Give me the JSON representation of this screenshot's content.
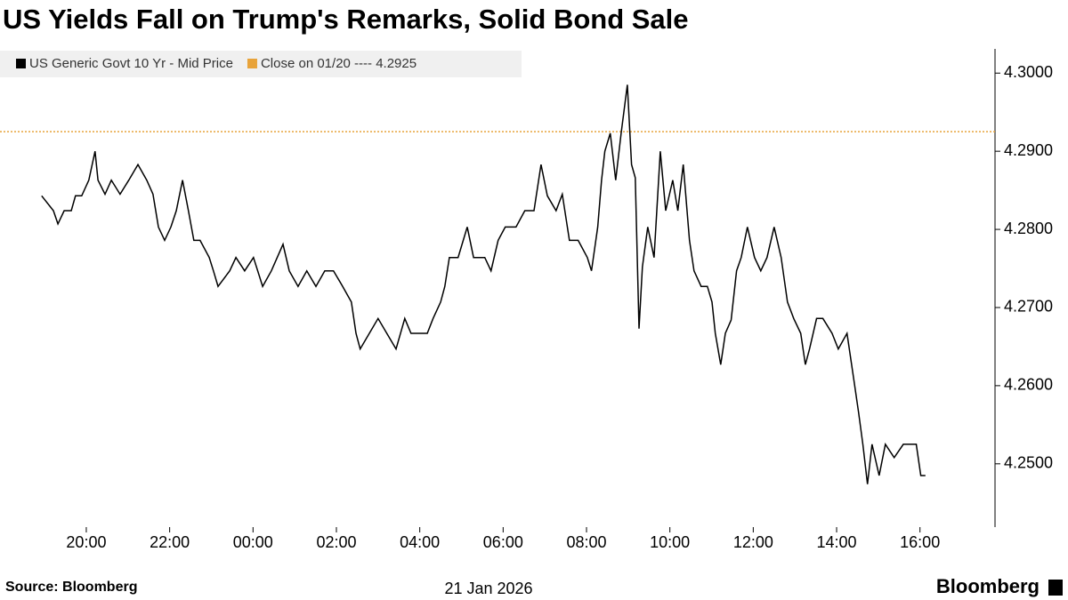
{
  "chart_data": {
    "type": "line",
    "title": "US Yields Fall on Trump's Remarks, Solid Bond Sale",
    "x_label": "21 Jan 2026",
    "source": "Source: Bloomberg",
    "brand": "Bloomberg",
    "x": [
      -5.07,
      -4.79,
      -4.68,
      -4.53,
      -4.36,
      -4.26,
      -4.11,
      -3.94,
      -3.79,
      -3.72,
      -3.55,
      -3.4,
      -3.19,
      -2.98,
      -2.76,
      -2.55,
      -2.4,
      -2.27,
      -2.12,
      -1.97,
      -1.84,
      -1.69,
      -1.55,
      -1.42,
      -1.27,
      -1.05,
      -0.95,
      -0.84,
      -0.56,
      -0.41,
      -0.2,
      0.01,
      0.23,
      0.44,
      0.72,
      0.87,
      1.08,
      1.29,
      1.51,
      1.72,
      1.93,
      2.15,
      2.36,
      2.47,
      2.57,
      2.79,
      3.0,
      3.21,
      3.43,
      3.64,
      3.79,
      4.18,
      4.32,
      4.5,
      4.6,
      4.71,
      4.92,
      5.14,
      5.29,
      5.56,
      5.71,
      5.88,
      6.05,
      6.31,
      6.52,
      6.74,
      6.91,
      7.06,
      7.27,
      7.42,
      7.59,
      7.8,
      8.02,
      8.12,
      8.27,
      8.36,
      8.44,
      8.57,
      8.7,
      8.83,
      8.98,
      9.08,
      9.17,
      9.26,
      9.34,
      9.47,
      9.62,
      9.77,
      9.9,
      10.07,
      10.19,
      10.32,
      10.47,
      10.58,
      10.75,
      10.9,
      11.01,
      11.09,
      11.22,
      11.33,
      11.47,
      11.6,
      11.71,
      11.86,
      12.03,
      12.18,
      12.33,
      12.5,
      12.67,
      12.82,
      12.97,
      13.14,
      13.25,
      13.35,
      13.52,
      13.67,
      13.89,
      14.04,
      14.25,
      14.42,
      14.53,
      14.63,
      14.74,
      14.85,
      15.02,
      15.17,
      15.38,
      15.6,
      15.91,
      16.02,
      16.13
    ],
    "series": [
      {
        "name": "US Generic Govt 10 Yr - Mid Price",
        "color": "#000000",
        "values": [
          4.2843,
          4.2824,
          4.2807,
          4.2824,
          4.2824,
          4.2843,
          4.2843,
          4.2863,
          4.29,
          4.2863,
          4.2845,
          4.2863,
          4.2845,
          4.2863,
          4.2883,
          4.2863,
          4.2845,
          4.2803,
          4.2786,
          4.2803,
          4.2824,
          4.2863,
          4.2824,
          4.2786,
          4.2786,
          4.2764,
          4.2747,
          4.2727,
          4.2747,
          4.2764,
          4.2747,
          4.2764,
          4.2727,
          4.2747,
          4.2781,
          4.2747,
          4.2727,
          4.2747,
          4.2727,
          4.2747,
          4.2747,
          4.2727,
          4.2707,
          4.2667,
          4.2647,
          4.2667,
          4.2686,
          4.2667,
          4.2647,
          4.2686,
          4.2667,
          4.2667,
          4.2686,
          4.2707,
          4.2727,
          4.2764,
          4.2764,
          4.2803,
          4.2764,
          4.2764,
          4.2747,
          4.2786,
          4.2803,
          4.2803,
          4.2824,
          4.2824,
          4.2883,
          4.2843,
          4.2824,
          4.2845,
          4.2786,
          4.2786,
          4.2764,
          4.2747,
          4.2803,
          4.2863,
          4.29,
          4.2923,
          4.2863,
          4.2923,
          4.2985,
          4.2883,
          4.2866,
          4.2673,
          4.2752,
          4.2803,
          4.2764,
          4.29,
          4.2824,
          4.2863,
          4.2824,
          4.2883,
          4.2786,
          4.2747,
          4.2727,
          4.2727,
          4.2707,
          4.2667,
          4.2627,
          4.2667,
          4.2684,
          4.2747,
          4.2764,
          4.2803,
          4.2764,
          4.2747,
          4.2764,
          4.2803,
          4.2764,
          4.2707,
          4.2686,
          4.2667,
          4.2627,
          4.2647,
          4.2686,
          4.2686,
          4.2667,
          4.2647,
          4.2667,
          4.2605,
          4.2565,
          4.2525,
          4.2474,
          4.2525,
          4.2485,
          4.2525,
          4.2508,
          4.2525,
          4.2525,
          4.2485,
          4.2485
        ]
      }
    ],
    "reference": {
      "name": "Close on 01/20 ---- 4.2925",
      "value": 4.2925,
      "color": "#e8a33a"
    },
    "xlim": [
      -6.07,
      17.8
    ],
    "xticks": [
      {
        "value": -4,
        "label": "20:00"
      },
      {
        "value": -2,
        "label": "22:00"
      },
      {
        "value": 0,
        "label": "00:00"
      },
      {
        "value": 2,
        "label": "02:00"
      },
      {
        "value": 4,
        "label": "04:00"
      },
      {
        "value": 6,
        "label": "06:00"
      },
      {
        "value": 8,
        "label": "08:00"
      },
      {
        "value": 10,
        "label": "10:00"
      },
      {
        "value": 12,
        "label": "12:00"
      },
      {
        "value": 14,
        "label": "14:00"
      },
      {
        "value": 16,
        "label": "16:00"
      }
    ],
    "ylim": [
      4.2419,
      4.3031
    ],
    "yticks": [
      {
        "value": 4.25,
        "label": "4.2500"
      },
      {
        "value": 4.26,
        "label": "4.2600"
      },
      {
        "value": 4.27,
        "label": "4.2700"
      },
      {
        "value": 4.28,
        "label": "4.2800"
      },
      {
        "value": 4.29,
        "label": "4.2900"
      },
      {
        "value": 4.3,
        "label": "4.3000"
      }
    ]
  }
}
